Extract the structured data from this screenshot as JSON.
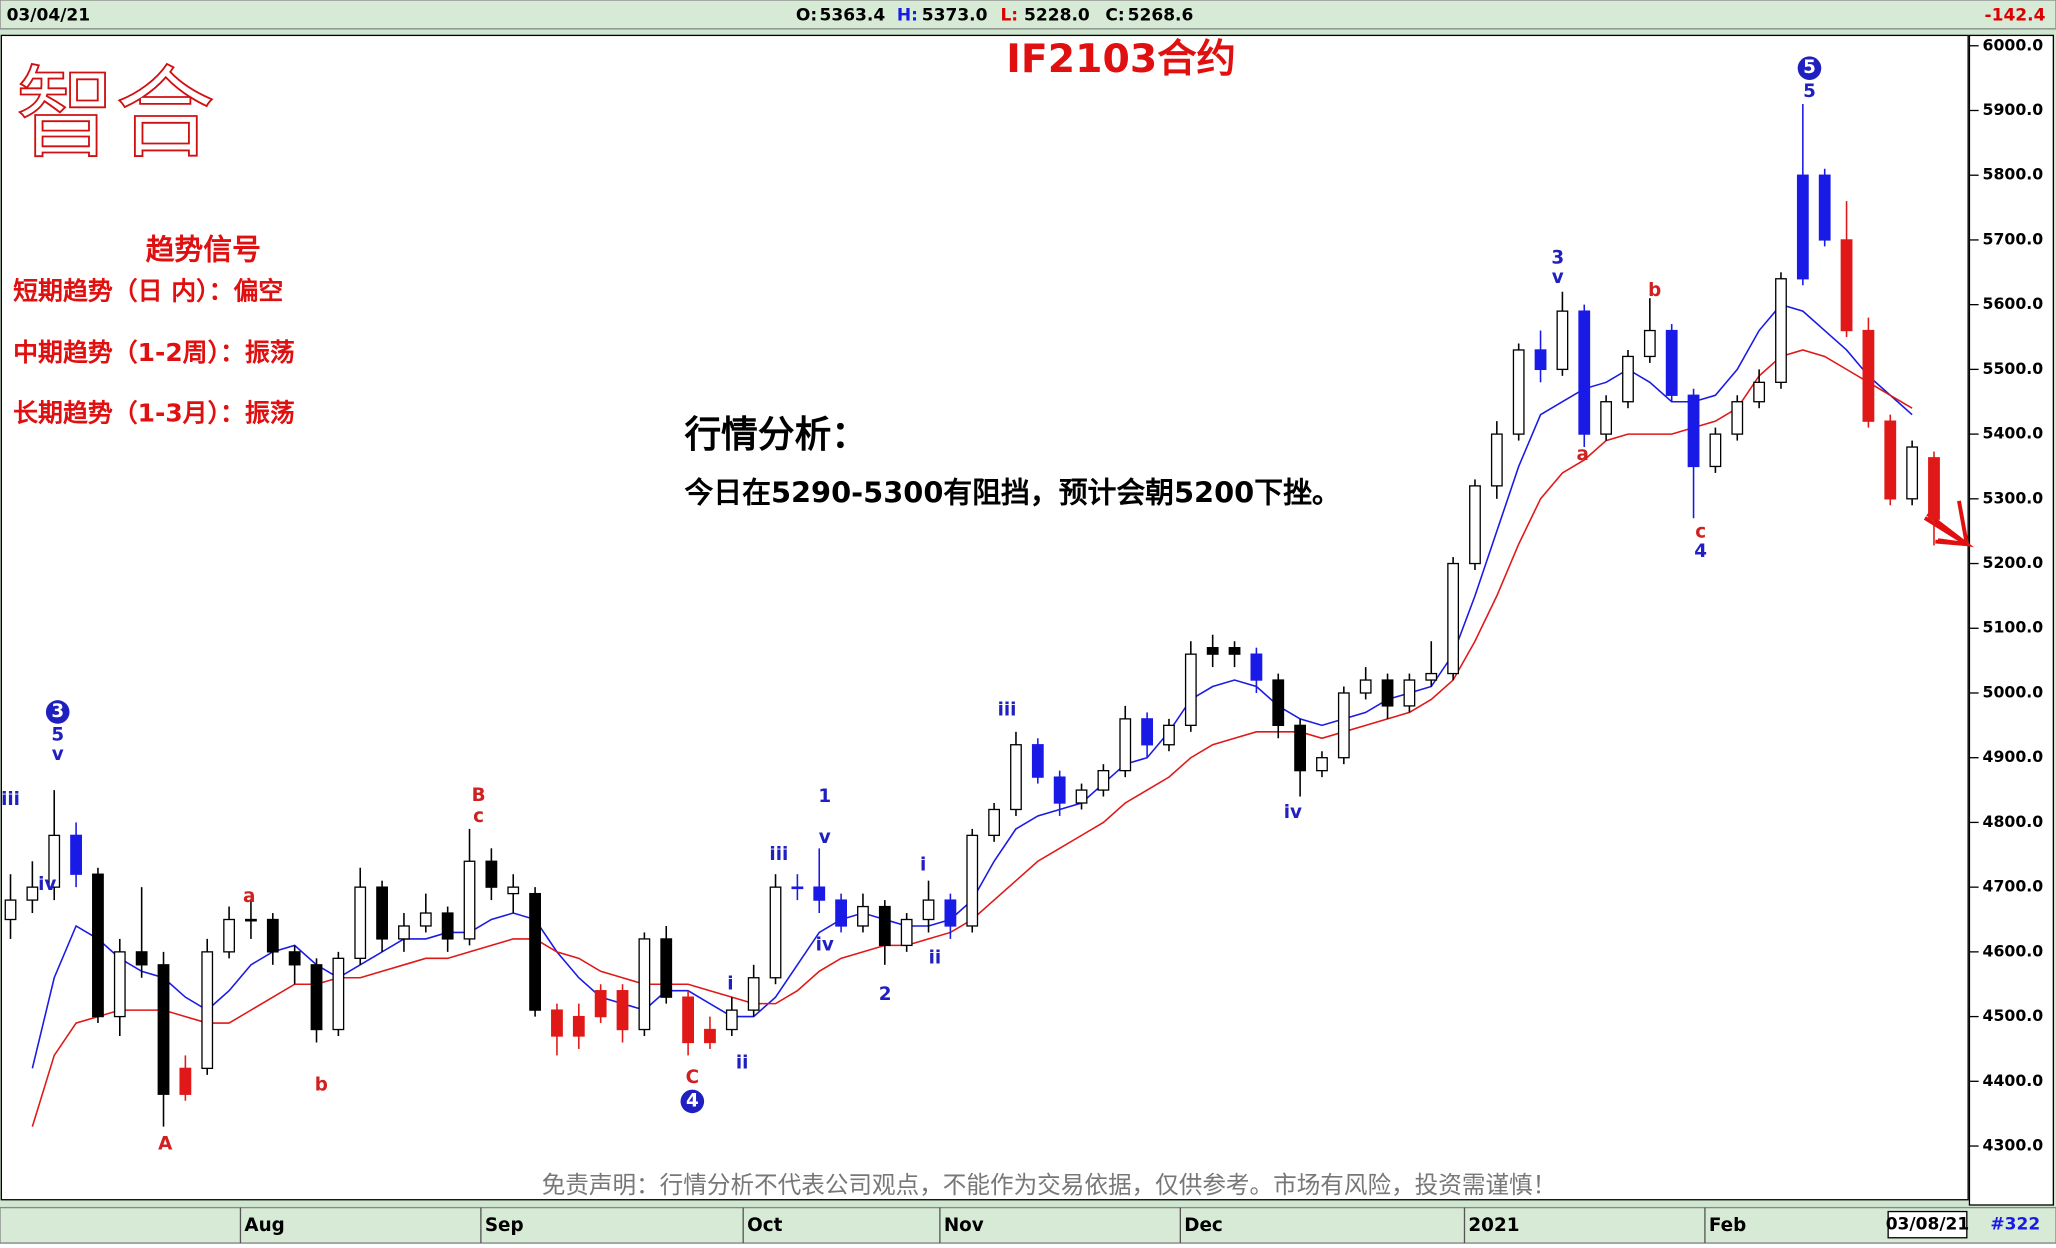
{
  "header": {
    "date": "03/04/21",
    "ohlc": [
      {
        "label": "O:",
        "value": "5363.4"
      },
      {
        "label": "H:",
        "value": "5373.0"
      },
      {
        "label": "L:",
        "value": "5228.0"
      },
      {
        "label": "C:",
        "value": "5268.6"
      }
    ],
    "change": "-142.4"
  },
  "logo": "智合",
  "signals": {
    "title": "趋势信号",
    "lines": [
      "短期趋势（日 内）：偏空",
      "中期趋势（1-2周）：振荡",
      "长期趋势（1-3月）：振荡"
    ]
  },
  "analysis": {
    "title": "行情分析：",
    "text": "今日在5290-5300有阻挡，预计会朝5200下挫。"
  },
  "disclaimer": "免责声明：行情分析不代表公司观点，不能作为交易依据，仅供参考。市场有风险，投资需谨慎！",
  "footer": {
    "date": "03/08/21",
    "count": "#322"
  },
  "chart_data": {
    "type": "candlestick",
    "title": "IF2103合约",
    "categories": [
      null,
      null,
      null,
      null,
      null,
      null,
      null,
      null,
      null,
      null,
      null,
      "Aug",
      null,
      null,
      null,
      null,
      null,
      null,
      null,
      null,
      null,
      null,
      "Sep",
      null,
      null,
      null,
      null,
      null,
      null,
      null,
      null,
      null,
      null,
      null,
      "Oct",
      null,
      null,
      null,
      null,
      null,
      null,
      null,
      null,
      "Nov",
      null,
      null,
      null,
      null,
      null,
      null,
      null,
      null,
      null,
      null,
      "Dec",
      null,
      null,
      null,
      null,
      null,
      null,
      null,
      null,
      null,
      null,
      null,
      null,
      "2021",
      null,
      null,
      null,
      null,
      null,
      null,
      null,
      null,
      null,
      null,
      "Feb",
      null,
      null,
      null,
      null,
      null,
      null,
      null,
      null,
      null,
      null
    ],
    "candles": [
      [
        4650,
        4720,
        4620,
        4680
      ],
      [
        4680,
        4740,
        4660,
        4700
      ],
      [
        4700,
        4850,
        4680,
        4780
      ],
      [
        4780,
        4800,
        4700,
        4720
      ],
      [
        4720,
        4730,
        4490,
        4500
      ],
      [
        4500,
        4620,
        4470,
        4600
      ],
      [
        4600,
        4700,
        4560,
        4580
      ],
      [
        4580,
        4600,
        4330,
        4380
      ],
      [
        4380,
        4440,
        4370,
        4420
      ],
      [
        4420,
        4620,
        4410,
        4600
      ],
      [
        4600,
        4670,
        4590,
        4650
      ],
      [
        4650,
        4680,
        4620,
        4650
      ],
      [
        4650,
        4660,
        4580,
        4600
      ],
      [
        4600,
        4610,
        4550,
        4580
      ],
      [
        4580,
        4590,
        4460,
        4480
      ],
      [
        4480,
        4600,
        4470,
        4590
      ],
      [
        4590,
        4730,
        4580,
        4700
      ],
      [
        4700,
        4710,
        4600,
        4620
      ],
      [
        4620,
        4660,
        4600,
        4640
      ],
      [
        4640,
        4690,
        4630,
        4660
      ],
      [
        4660,
        4670,
        4600,
        4620
      ],
      [
        4620,
        4790,
        4610,
        4740
      ],
      [
        4740,
        4760,
        4680,
        4700
      ],
      [
        4700,
        4720,
        4660,
        4690
      ],
      [
        4690,
        4700,
        4500,
        4510
      ],
      [
        4510,
        4520,
        4440,
        4470
      ],
      [
        4470,
        4520,
        4450,
        4500
      ],
      [
        4500,
        4550,
        4490,
        4540
      ],
      [
        4540,
        4550,
        4460,
        4480
      ],
      [
        4480,
        4630,
        4470,
        4620
      ],
      [
        4620,
        4640,
        4520,
        4530
      ],
      [
        4530,
        4540,
        4440,
        4460
      ],
      [
        4460,
        4500,
        4450,
        4480
      ],
      [
        4480,
        4530,
        4470,
        4510
      ],
      [
        4510,
        4580,
        4500,
        4560
      ],
      [
        4560,
        4720,
        4550,
        4700
      ],
      [
        4700,
        4720,
        4680,
        4700
      ],
      [
        4700,
        4760,
        4660,
        4680
      ],
      [
        4680,
        4690,
        4630,
        4640
      ],
      [
        4640,
        4690,
        4630,
        4670
      ],
      [
        4670,
        4680,
        4580,
        4610
      ],
      [
        4610,
        4660,
        4600,
        4650
      ],
      [
        4650,
        4710,
        4630,
        4680
      ],
      [
        4680,
        4690,
        4620,
        4640
      ],
      [
        4640,
        4790,
        4630,
        4780
      ],
      [
        4780,
        4830,
        4770,
        4820
      ],
      [
        4820,
        4940,
        4810,
        4920
      ],
      [
        4920,
        4930,
        4860,
        4870
      ],
      [
        4870,
        4880,
        4810,
        4830
      ],
      [
        4830,
        4860,
        4820,
        4850
      ],
      [
        4850,
        4890,
        4840,
        4880
      ],
      [
        4880,
        4980,
        4870,
        4960
      ],
      [
        4960,
        4970,
        4900,
        4920
      ],
      [
        4920,
        4960,
        4910,
        4950
      ],
      [
        4950,
        5080,
        4940,
        5060
      ],
      [
        5060,
        5090,
        5040,
        5070
      ],
      [
        5070,
        5080,
        5040,
        5060
      ],
      [
        5060,
        5070,
        5000,
        5020
      ],
      [
        5020,
        5030,
        4930,
        4950
      ],
      [
        4950,
        4960,
        4840,
        4880
      ],
      [
        4880,
        4910,
        4870,
        4900
      ],
      [
        4900,
        5010,
        4890,
        5000
      ],
      [
        5000,
        5040,
        4990,
        5020
      ],
      [
        5020,
        5030,
        4960,
        4980
      ],
      [
        4980,
        5030,
        4970,
        5020
      ],
      [
        5020,
        5080,
        5010,
        5030
      ],
      [
        5030,
        5210,
        5020,
        5200
      ],
      [
        5200,
        5330,
        5190,
        5320
      ],
      [
        5320,
        5420,
        5300,
        5400
      ],
      [
        5400,
        5540,
        5390,
        5530
      ],
      [
        5530,
        5560,
        5480,
        5500
      ],
      [
        5500,
        5620,
        5490,
        5590
      ],
      [
        5590,
        5600,
        5380,
        5400
      ],
      [
        5400,
        5460,
        5390,
        5450
      ],
      [
        5450,
        5530,
        5440,
        5520
      ],
      [
        5520,
        5610,
        5510,
        5560
      ],
      [
        5560,
        5570,
        5450,
        5460
      ],
      [
        5460,
        5470,
        5270,
        5350
      ],
      [
        5350,
        5410,
        5340,
        5400
      ],
      [
        5400,
        5460,
        5390,
        5450
      ],
      [
        5450,
        5500,
        5440,
        5480
      ],
      [
        5480,
        5650,
        5470,
        5640
      ],
      [
        5640,
        5910,
        5630,
        5800
      ],
      [
        5800,
        5810,
        5690,
        5700
      ],
      [
        5700,
        5760,
        5550,
        5560
      ],
      [
        5560,
        5580,
        5410,
        5420
      ],
      [
        5420,
        5430,
        5290,
        5300
      ],
      [
        5300,
        5390,
        5290,
        5380
      ],
      [
        5363.4,
        5373,
        5228,
        5268.6
      ]
    ],
    "candle_colors": [
      "w",
      "w",
      "w",
      "b",
      "k",
      "w",
      "k",
      "k",
      "r",
      "w",
      "w",
      "w",
      "k",
      "k",
      "k",
      "w",
      "w",
      "k",
      "w",
      "w",
      "k",
      "w",
      "k",
      "w",
      "k",
      "r",
      "r",
      "r",
      "r",
      "w",
      "k",
      "r",
      "r",
      "w",
      "w",
      "w",
      "b",
      "b",
      "b",
      "w",
      "k",
      "w",
      "w",
      "b",
      "w",
      "w",
      "w",
      "b",
      "b",
      "w",
      "w",
      "w",
      "b",
      "w",
      "w",
      "k",
      "k",
      "b",
      "k",
      "k",
      "w",
      "w",
      "w",
      "k",
      "w",
      "w",
      "w",
      "w",
      "w",
      "w",
      "b",
      "w",
      "b",
      "w",
      "w",
      "w",
      "b",
      "b",
      "w",
      "w",
      "w",
      "w",
      "b",
      "b",
      "r",
      "r",
      "r",
      "w",
      "r"
    ],
    "palette": {
      "w": "#ffffff",
      "k": "#000000",
      "b": "#1a1ae6",
      "r": "#e01818"
    },
    "series": [
      {
        "color": "#1a1ae6",
        "values": [
          null,
          4420,
          4560,
          4640,
          4620,
          4590,
          4570,
          4560,
          4530,
          4510,
          4540,
          4580,
          4600,
          4610,
          4580,
          4560,
          4580,
          4600,
          4620,
          4620,
          4630,
          4630,
          4650,
          4660,
          4650,
          4600,
          4560,
          4530,
          4520,
          4510,
          4540,
          4540,
          4520,
          4500,
          4500,
          4530,
          4580,
          4630,
          4650,
          4660,
          4650,
          4640,
          4640,
          4650,
          4680,
          4740,
          4790,
          4810,
          4820,
          4830,
          4860,
          4890,
          4900,
          4940,
          4990,
          5010,
          5020,
          5010,
          4980,
          4960,
          4950,
          4960,
          4970,
          4990,
          5000,
          5010,
          5060,
          5150,
          5250,
          5350,
          5430,
          5450,
          5470,
          5480,
          5500,
          5480,
          5450,
          5450,
          5460,
          5500,
          5560,
          5600,
          5590,
          5560,
          5530,
          5490,
          5460,
          5430,
          null
        ]
      },
      {
        "color": "#e01818",
        "values": [
          null,
          4330,
          4440,
          4490,
          4500,
          4510,
          4510,
          4510,
          4500,
          4490,
          4490,
          4510,
          4530,
          4550,
          4550,
          4560,
          4560,
          4570,
          4580,
          4590,
          4590,
          4600,
          4610,
          4620,
          4620,
          4600,
          4590,
          4570,
          4560,
          4550,
          4550,
          4550,
          4540,
          4530,
          4520,
          4520,
          4540,
          4570,
          4590,
          4600,
          4610,
          4610,
          4620,
          4630,
          4650,
          4680,
          4710,
          4740,
          4760,
          4780,
          4800,
          4830,
          4850,
          4870,
          4900,
          4920,
          4930,
          4940,
          4940,
          4940,
          4930,
          4940,
          4950,
          4960,
          4970,
          4990,
          5020,
          5080,
          5150,
          5230,
          5300,
          5340,
          5360,
          5390,
          5400,
          5400,
          5400,
          5410,
          5420,
          5440,
          5490,
          5520,
          5530,
          5520,
          5500,
          5480,
          5460,
          5440,
          null
        ]
      }
    ],
    "ylim": [
      4217,
      6014
    ],
    "yticks": [
      {
        "value": 4300,
        "label": "4300.0"
      },
      {
        "value": 4400,
        "label": "4400.0"
      },
      {
        "value": 4500,
        "label": "4500.0"
      },
      {
        "value": 4600,
        "label": "4600.0"
      },
      {
        "value": 4700,
        "label": "4700.0"
      },
      {
        "value": 4800,
        "label": "4800.0"
      },
      {
        "value": 4900,
        "label": "4900.0"
      },
      {
        "value": 5000,
        "label": "5000.0"
      },
      {
        "value": 5100,
        "label": "5100.0"
      },
      {
        "value": 5200,
        "label": "5200.0"
      },
      {
        "value": 5300,
        "label": "5300.0"
      },
      {
        "value": 5400,
        "label": "5400.0"
      },
      {
        "value": 5500,
        "label": "5500.0"
      },
      {
        "value": 5600,
        "label": "5600.0"
      },
      {
        "value": 5700,
        "label": "5700.0"
      },
      {
        "value": 5800,
        "label": "5800.0"
      },
      {
        "value": 5900,
        "label": "5900.0"
      },
      {
        "value": 6000,
        "label": "6000.0"
      }
    ],
    "annotations": [
      {
        "text": "iii",
        "color": "#2020c0"
      },
      {
        "text": "3",
        "color": "#2020c0",
        "circled": true
      },
      {
        "text": "5",
        "color": "#2020c0"
      },
      {
        "text": "v",
        "color": "#2020c0"
      },
      {
        "text": "iv",
        "color": "#2020c0"
      },
      {
        "text": "A",
        "color": "#d02020"
      },
      {
        "text": "a",
        "color": "#d02020"
      },
      {
        "text": "b",
        "color": "#d02020"
      },
      {
        "text": "B",
        "color": "#d02020"
      },
      {
        "text": "c",
        "color": "#d02020"
      },
      {
        "text": "C",
        "color": "#d02020"
      },
      {
        "text": "4",
        "color": "#2020c0",
        "circled": true
      },
      {
        "text": "i",
        "color": "#2020c0"
      },
      {
        "text": "ii",
        "color": "#2020c0"
      },
      {
        "text": "iii",
        "color": "#2020c0"
      },
      {
        "text": "1",
        "color": "#2020c0"
      },
      {
        "text": "v",
        "color": "#2020c0"
      },
      {
        "text": "iv",
        "color": "#2020c0"
      },
      {
        "text": "2",
        "color": "#2020c0"
      },
      {
        "text": "i",
        "color": "#2020c0"
      },
      {
        "text": "ii",
        "color": "#2020c0"
      },
      {
        "text": "iii",
        "color": "#2020c0"
      },
      {
        "text": "iv",
        "color": "#2020c0"
      },
      {
        "text": "3",
        "color": "#2020c0"
      },
      {
        "text": "v",
        "color": "#2020c0"
      },
      {
        "text": "b",
        "color": "#d02020"
      },
      {
        "text": "a",
        "color": "#d02020"
      },
      {
        "text": "c",
        "color": "#d02020"
      },
      {
        "text": "4",
        "color": "#2020c0"
      },
      {
        "text": "5",
        "color": "#2020c0",
        "circled": true
      },
      {
        "text": "5",
        "color": "#2020c0"
      }
    ]
  }
}
